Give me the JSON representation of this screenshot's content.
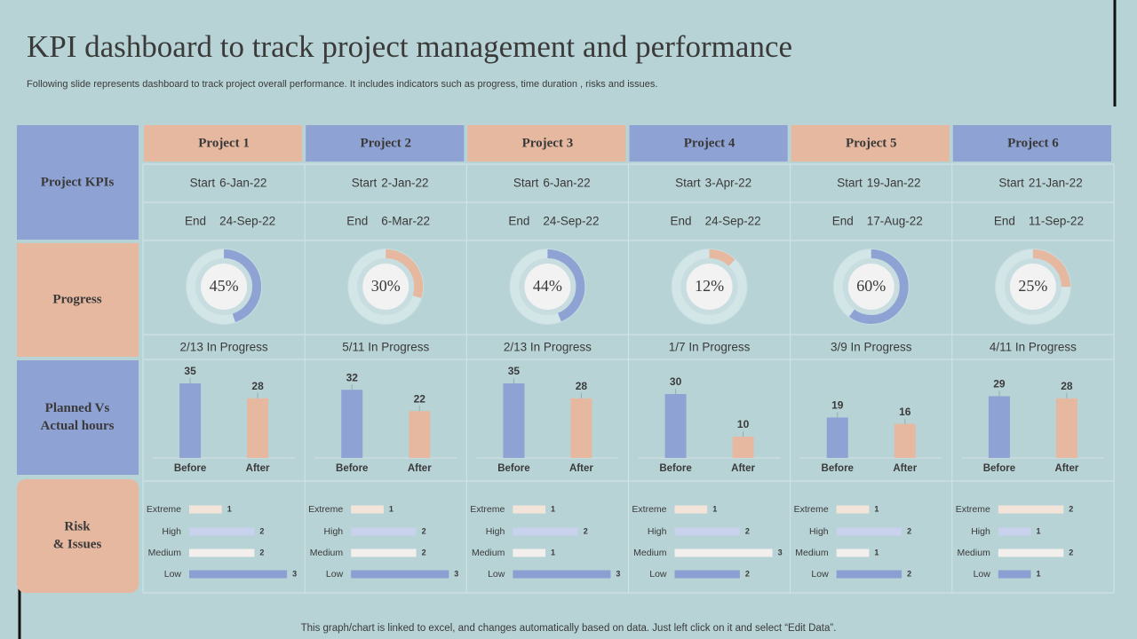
{
  "title": "KPI dashboard to track project management and performance",
  "subtitle": "Following slide represents dashboard to track project overall performance. It includes indicators such as progress, time duration , risks and issues.",
  "footer": "This graph/chart is linked to excel,  and changes automatically based on data. Just left click on it and select “Edit Data”.",
  "row_labels": [
    [
      "Project KPIs"
    ],
    [
      "Progress"
    ],
    [
      "Planned Vs",
      "Actual hours"
    ],
    [
      "Risk",
      "& Issues"
    ]
  ],
  "row_label_colors": [
    "#8fa2d4",
    "#e6b8a0",
    "#8fa2d4",
    "#e6b8a0"
  ],
  "start_label": "Start",
  "end_label": "End",
  "hours_categories": [
    "Before",
    "After"
  ],
  "hours_colors": [
    "#8fa2d4",
    "#e6b8a0"
  ],
  "risk_categories": [
    "Extreme",
    "High",
    "Medium",
    "Low"
  ],
  "risk_colors": [
    "#f3e4da",
    "#c9d2ec",
    "#f2efec",
    "#8b9fd3"
  ],
  "projects": [
    {
      "name": "Project  1",
      "header_color": "#e6b8a0",
      "progress_color": "#8fa2d4",
      "start": "6-Jan-22",
      "end": "24-Sep-22",
      "progress": {
        "value": 45,
        "label": "45%"
      },
      "status": "2/13 In Progress",
      "hours": [
        35,
        28
      ],
      "risks": [
        1,
        2,
        2,
        3
      ]
    },
    {
      "name": "Project  2",
      "header_color": "#8fa2d4",
      "progress_color": "#e6b8a0",
      "start": "2-Jan-22",
      "end": "6-Mar-22",
      "progress": {
        "value": 30,
        "label": "30%"
      },
      "status": "5/11 In Progress",
      "hours": [
        32,
        22
      ],
      "risks": [
        1,
        2,
        2,
        3
      ]
    },
    {
      "name": "Project  3",
      "header_color": "#e6b8a0",
      "progress_color": "#8fa2d4",
      "start": "6-Jan-22",
      "end": "24-Sep-22",
      "progress": {
        "value": 44,
        "label": "44%"
      },
      "status": "2/13 In Progress",
      "hours": [
        35,
        28
      ],
      "risks": [
        1,
        2,
        1,
        3
      ]
    },
    {
      "name": "Project  4",
      "header_color": "#8fa2d4",
      "progress_color": "#e6b8a0",
      "start": "3-Apr-22",
      "end": "24-Sep-22",
      "progress": {
        "value": 12,
        "label": "12%"
      },
      "status": "1/7 In Progress",
      "hours": [
        30,
        10
      ],
      "risks": [
        1,
        2,
        3,
        2
      ]
    },
    {
      "name": "Project  5",
      "header_color": "#e6b8a0",
      "progress_color": "#8fa2d4",
      "start": "19-Jan-22",
      "end": "17-Aug-22",
      "progress": {
        "value": 60,
        "label": "60%"
      },
      "status": "3/9 In Progress",
      "hours": [
        19,
        16
      ],
      "risks": [
        1,
        2,
        1,
        2
      ]
    },
    {
      "name": "Project  6",
      "header_color": "#8fa2d4",
      "progress_color": "#e6b8a0",
      "start": "21-Jan-22",
      "end": "11-Sep-22",
      "progress": {
        "value": 25,
        "label": "25%"
      },
      "status": "4/11 In Progress",
      "hours": [
        29,
        28
      ],
      "risks": [
        2,
        1,
        2,
        1
      ]
    }
  ]
}
